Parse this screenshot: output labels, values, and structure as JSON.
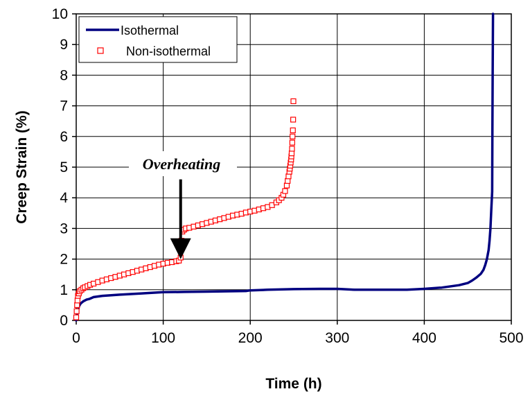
{
  "chart_data": {
    "type": "line",
    "title": "",
    "xlabel": "Time (h)",
    "ylabel": "Creep Strain (%)",
    "xlim": [
      0,
      500
    ],
    "ylim": [
      0,
      10
    ],
    "xticks": [
      0,
      100,
      200,
      300,
      400,
      500
    ],
    "yticks": [
      0,
      1,
      2,
      3,
      4,
      5,
      6,
      7,
      8,
      9,
      10
    ],
    "grid": true,
    "legend_position": "top-left",
    "series": [
      {
        "name": "Isothermal",
        "style": "line",
        "color": "#000080",
        "x": [
          0,
          1,
          2,
          3,
          5,
          8,
          12,
          15,
          20,
          30,
          50,
          75,
          100,
          125,
          150,
          175,
          195,
          200,
          220,
          250,
          280,
          300,
          320,
          350,
          380,
          400,
          420,
          440,
          450,
          455,
          460,
          465,
          468,
          470,
          472,
          474,
          475,
          476,
          477,
          478,
          478.3,
          478.6,
          479
        ],
        "y": [
          0,
          0.18,
          0.32,
          0.45,
          0.55,
          0.62,
          0.68,
          0.7,
          0.76,
          0.8,
          0.84,
          0.88,
          0.92,
          0.93,
          0.94,
          0.95,
          0.96,
          0.98,
          1.0,
          1.02,
          1.03,
          1.03,
          1.0,
          1.0,
          1.0,
          1.03,
          1.07,
          1.15,
          1.22,
          1.3,
          1.4,
          1.52,
          1.65,
          1.8,
          2.0,
          2.3,
          2.6,
          3.0,
          3.6,
          4.2,
          6.0,
          8.0,
          10.0
        ]
      },
      {
        "name": "Non-isothermal",
        "style": "marker",
        "color": "#ff0000",
        "x": [
          0,
          0.5,
          1,
          1.5,
          2,
          3,
          4,
          6,
          8,
          10,
          13,
          16,
          20,
          25,
          30,
          35,
          40,
          45,
          50,
          55,
          60,
          65,
          70,
          75,
          80,
          85,
          90,
          95,
          100,
          105,
          110,
          115,
          118,
          120,
          121,
          122,
          124,
          126,
          130,
          135,
          140,
          145,
          150,
          155,
          160,
          165,
          170,
          175,
          180,
          185,
          190,
          195,
          200,
          205,
          210,
          215,
          220,
          225,
          230,
          233,
          236,
          238,
          240,
          242,
          243,
          244,
          245,
          245.5,
          246,
          246.5,
          247,
          247.3,
          247.6,
          248,
          248.3,
          248.6,
          249,
          249.3,
          249.6
        ],
        "y": [
          0.1,
          0.3,
          0.5,
          0.65,
          0.8,
          0.88,
          0.95,
          1.0,
          1.05,
          1.08,
          1.12,
          1.16,
          1.2,
          1.25,
          1.3,
          1.34,
          1.38,
          1.42,
          1.46,
          1.5,
          1.54,
          1.58,
          1.62,
          1.66,
          1.7,
          1.74,
          1.78,
          1.82,
          1.85,
          1.88,
          1.9,
          1.93,
          1.95,
          2.05,
          2.6,
          2.9,
          2.96,
          3.0,
          3.02,
          3.06,
          3.1,
          3.14,
          3.18,
          3.22,
          3.26,
          3.3,
          3.34,
          3.38,
          3.42,
          3.45,
          3.48,
          3.52,
          3.55,
          3.58,
          3.62,
          3.66,
          3.7,
          3.76,
          3.85,
          3.92,
          4.0,
          4.1,
          4.22,
          4.4,
          4.55,
          4.7,
          4.85,
          4.95,
          5.05,
          5.15,
          5.25,
          5.35,
          5.45,
          5.6,
          5.8,
          6.0,
          6.2,
          6.55,
          7.15
        ]
      }
    ],
    "annotations": [
      {
        "text": "Overheating",
        "arrow_x": 120,
        "arrow_y_from": 4.6,
        "arrow_y_to": 2.0
      }
    ]
  }
}
